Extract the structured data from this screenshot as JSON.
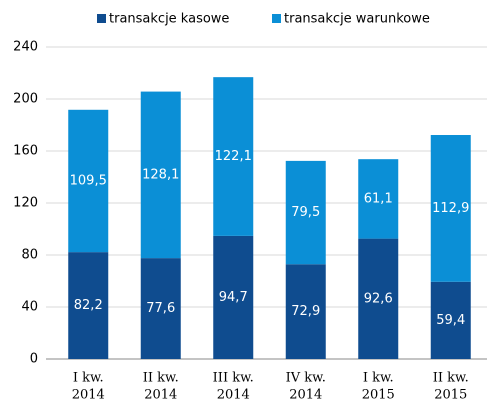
{
  "chart_data": {
    "type": "stacked_bar",
    "categories": [
      [
        "I kw.",
        "2014"
      ],
      [
        "II kw.",
        "2014"
      ],
      [
        "III kw.",
        "2014"
      ],
      [
        "IV kw.",
        "2014"
      ],
      [
        "I kw.",
        "2015"
      ],
      [
        "II kw.",
        "2015"
      ]
    ],
    "series": [
      {
        "name": "transakcje kasowe",
        "color": "#0f4c8f",
        "values": [
          82.2,
          77.6,
          94.7,
          72.9,
          92.6,
          59.4
        ],
        "value_labels": [
          "82,2",
          "77,6",
          "94,7",
          "72,9",
          "92,6",
          "59,4"
        ]
      },
      {
        "name": "transakcje warunkowe",
        "color": "#0b8fd6",
        "values": [
          109.5,
          128.1,
          122.1,
          79.5,
          61.1,
          112.9
        ],
        "value_labels": [
          "109,5",
          "128,1",
          "122,1",
          "79,5",
          "61,1",
          "112,9"
        ]
      }
    ],
    "ylim": [
      0,
      240
    ],
    "yticks": [
      0,
      40,
      80,
      120,
      160,
      200,
      240
    ],
    "grid": true,
    "legend": "top"
  }
}
